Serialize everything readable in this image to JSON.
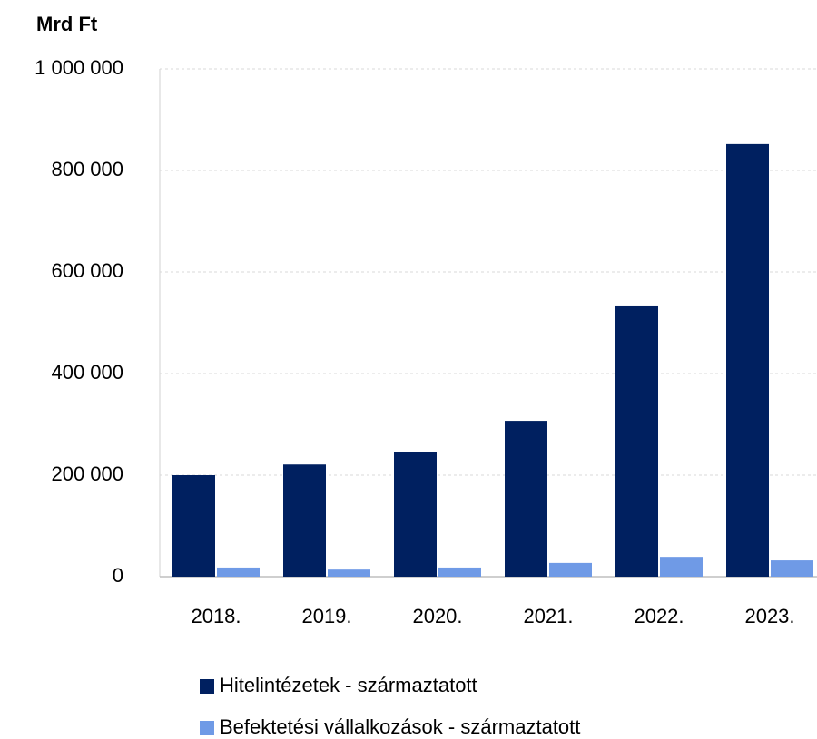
{
  "chart_data": {
    "type": "bar",
    "title": "Mrd Ft",
    "categories": [
      "2018.",
      "2019.",
      "2020.",
      "2021.",
      "2022.",
      "2023."
    ],
    "series": [
      {
        "name": "Hitelintézetek - származtatott",
        "color": "#002060",
        "values": [
          200000,
          221000,
          246000,
          307000,
          534000,
          852000
        ]
      },
      {
        "name": "Befektetési vállalkozások - származtatott",
        "color": "#6f9ae6",
        "values": [
          18000,
          14000,
          18000,
          27000,
          39000,
          32000
        ]
      }
    ],
    "ylim": [
      0,
      1000000
    ],
    "yticks": [
      0,
      {
        "value": 200000,
        "label": "200 000"
      },
      {
        "value": 400000,
        "label": "400 000"
      },
      {
        "value": 600000,
        "label": "600 000"
      },
      {
        "value": 800000,
        "label": "800 000"
      },
      {
        "value": 1000000,
        "label": "1 000 000"
      }
    ],
    "grid": true
  }
}
